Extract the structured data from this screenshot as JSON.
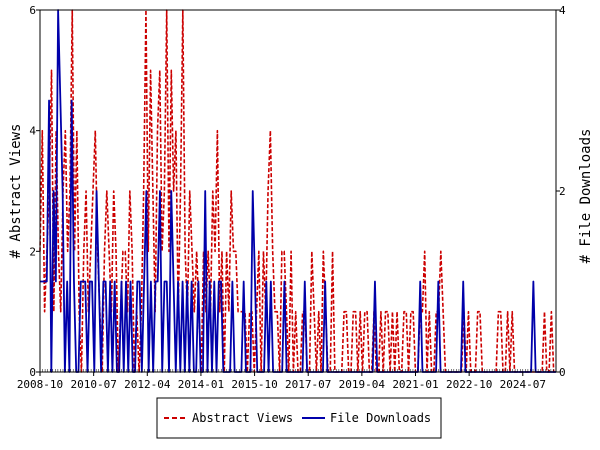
{
  "chart_data": {
    "type": "line",
    "title": "",
    "xlabel": "",
    "ylabel_left": "# Abstract Views",
    "ylabel_right": "# File Downloads",
    "x_start": "2008-10",
    "x_end": "2025-08",
    "ylim_left": [
      0,
      6
    ],
    "ylim_right": [
      0,
      4
    ],
    "yticks_left": [
      "0",
      "2",
      "4",
      "6"
    ],
    "yticks_right": [
      "0",
      "2",
      "4"
    ],
    "xtick_labels": [
      "2008-10",
      "2010-07",
      "2012-04",
      "2014-01",
      "2015-10",
      "2017-07",
      "2019-04",
      "2021-01",
      "2022-10",
      "2024-07"
    ],
    "legend_placement": "bottom-center",
    "grid": false,
    "series": [
      {
        "name": "Abstract Views",
        "axis": "left",
        "color": "#cc0000",
        "style": "dashed",
        "values": [
          2,
          4,
          1,
          2,
          3,
          5,
          1,
          4,
          2,
          1,
          3,
          4,
          2,
          3,
          6,
          2,
          4,
          1,
          0,
          2,
          3,
          1,
          2,
          3,
          4,
          2,
          1,
          0,
          2,
          3,
          2,
          1,
          3,
          2,
          0,
          1,
          2,
          2,
          1,
          3,
          2,
          0,
          1,
          0,
          1,
          3,
          6,
          2,
          5,
          3,
          1,
          4,
          5,
          2,
          3,
          6,
          2,
          5,
          3,
          4,
          1,
          3,
          6,
          2,
          1,
          3,
          2,
          1,
          2,
          1,
          0,
          2,
          1,
          2,
          1,
          3,
          2,
          4,
          1,
          2,
          0,
          2,
          1,
          3,
          2,
          2,
          1,
          1,
          1,
          1,
          0,
          1,
          1,
          0,
          1,
          2,
          0,
          2,
          1,
          3,
          4,
          2,
          1,
          1,
          0,
          2,
          2,
          1,
          0,
          2,
          0,
          1,
          0,
          0,
          1,
          1,
          0,
          0,
          2,
          1,
          0,
          1,
          0,
          2,
          1,
          0,
          0,
          2,
          0,
          0,
          0,
          0,
          1,
          1,
          0,
          0,
          1,
          1,
          0,
          1,
          0,
          1,
          1,
          0,
          0,
          1,
          0,
          0,
          1,
          0,
          1,
          1,
          0,
          1,
          0,
          1,
          0,
          0,
          1,
          1,
          0,
          1,
          1,
          0,
          0,
          1,
          1,
          2,
          0,
          1,
          0,
          0,
          1,
          1,
          2,
          1,
          0,
          0,
          0,
          0,
          0,
          0,
          0,
          0,
          1,
          0,
          1,
          0,
          0,
          0,
          1,
          1,
          0,
          0,
          0,
          0,
          0,
          0,
          0,
          1,
          1,
          0,
          0,
          1,
          0,
          1,
          0,
          0,
          0,
          0,
          0,
          0,
          0,
          0,
          0,
          0,
          0,
          0,
          0,
          1,
          0,
          0,
          1,
          0,
          0
        ]
      },
      {
        "name": "File Downloads",
        "axis": "right",
        "color": "#0000aa",
        "style": "solid",
        "values": [
          1,
          1,
          1,
          1,
          3,
          0,
          2,
          1,
          4,
          3,
          2,
          0,
          1,
          0,
          3,
          1,
          0,
          0,
          1,
          1,
          1,
          0,
          1,
          1,
          0,
          2,
          1,
          0,
          1,
          1,
          0,
          1,
          0,
          1,
          0,
          0,
          1,
          0,
          1,
          0,
          1,
          0,
          0,
          1,
          1,
          0,
          1,
          2,
          0,
          1,
          0,
          1,
          1,
          2,
          0,
          1,
          1,
          0,
          2,
          1,
          0,
          1,
          0,
          1,
          0,
          1,
          0,
          1,
          0,
          0,
          1,
          0,
          0,
          2,
          0,
          1,
          0,
          1,
          0,
          1,
          1,
          0,
          0,
          0,
          0,
          1,
          0,
          0,
          0,
          0,
          1,
          0,
          0,
          0,
          2,
          1,
          0,
          0,
          0,
          0,
          1,
          0,
          1,
          0,
          0,
          0,
          0,
          0,
          1,
          0,
          0,
          0,
          0,
          0,
          0,
          0,
          0,
          1,
          0,
          0,
          0,
          0,
          0,
          0,
          0,
          0,
          1,
          0,
          0,
          0,
          0,
          0,
          0,
          0,
          0,
          0,
          0,
          0,
          0,
          0,
          0,
          0,
          0,
          0,
          0,
          0,
          0,
          0,
          1,
          0,
          0,
          0,
          0,
          0,
          0,
          0,
          0,
          0,
          0,
          0,
          0,
          0,
          0,
          0,
          0,
          0,
          0,
          0,
          1,
          0,
          0,
          0,
          0,
          0,
          0,
          0,
          1,
          0,
          0,
          0,
          0,
          0,
          0,
          0,
          0,
          0,
          0,
          1,
          0,
          0,
          0,
          0,
          0,
          0,
          0,
          0,
          0,
          0,
          0,
          0,
          0,
          0,
          0,
          0,
          0,
          0,
          0,
          0,
          0,
          0,
          0,
          0,
          0,
          0,
          0,
          0,
          0,
          0,
          1,
          0,
          0,
          0,
          0,
          0,
          0,
          0,
          0,
          0,
          0
        ]
      }
    ]
  }
}
